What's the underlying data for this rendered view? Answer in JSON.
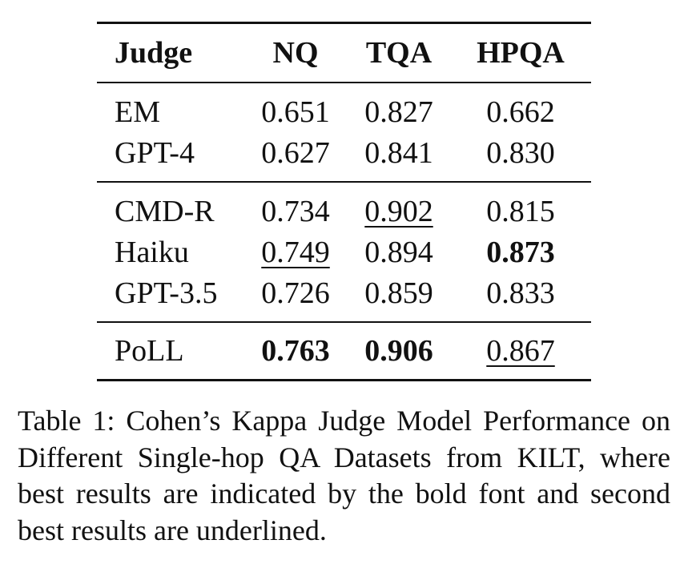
{
  "table": {
    "headers": [
      "Judge",
      "NQ",
      "TQA",
      "HPQA"
    ],
    "groups": [
      [
        {
          "judge": "EM",
          "nq": "0.651",
          "tqa": "0.827",
          "hpqa": "0.662"
        },
        {
          "judge": "GPT-4",
          "nq": "0.627",
          "tqa": "0.841",
          "hpqa": "0.830"
        }
      ],
      [
        {
          "judge": "CMD-R",
          "nq": "0.734",
          "tqa": "0.902",
          "hpqa": "0.815"
        },
        {
          "judge": "Haiku",
          "nq": "0.749",
          "tqa": "0.894",
          "hpqa": "0.873"
        },
        {
          "judge": "GPT-3.5",
          "nq": "0.726",
          "tqa": "0.859",
          "hpqa": "0.833"
        }
      ],
      [
        {
          "judge": "PoLL",
          "nq": "0.763",
          "tqa": "0.906",
          "hpqa": "0.867"
        }
      ]
    ],
    "best": {
      "nq": "PoLL",
      "tqa": "PoLL",
      "hpqa": "Haiku"
    },
    "second_best": {
      "nq": "Haiku",
      "tqa": "CMD-R",
      "hpqa": "PoLL"
    }
  },
  "caption": "Table 1: Cohen’s Kappa Judge Model Performance on Different Single-hop QA Datasets from KILT, where best results are indicated by the bold font and second best results are underlined."
}
